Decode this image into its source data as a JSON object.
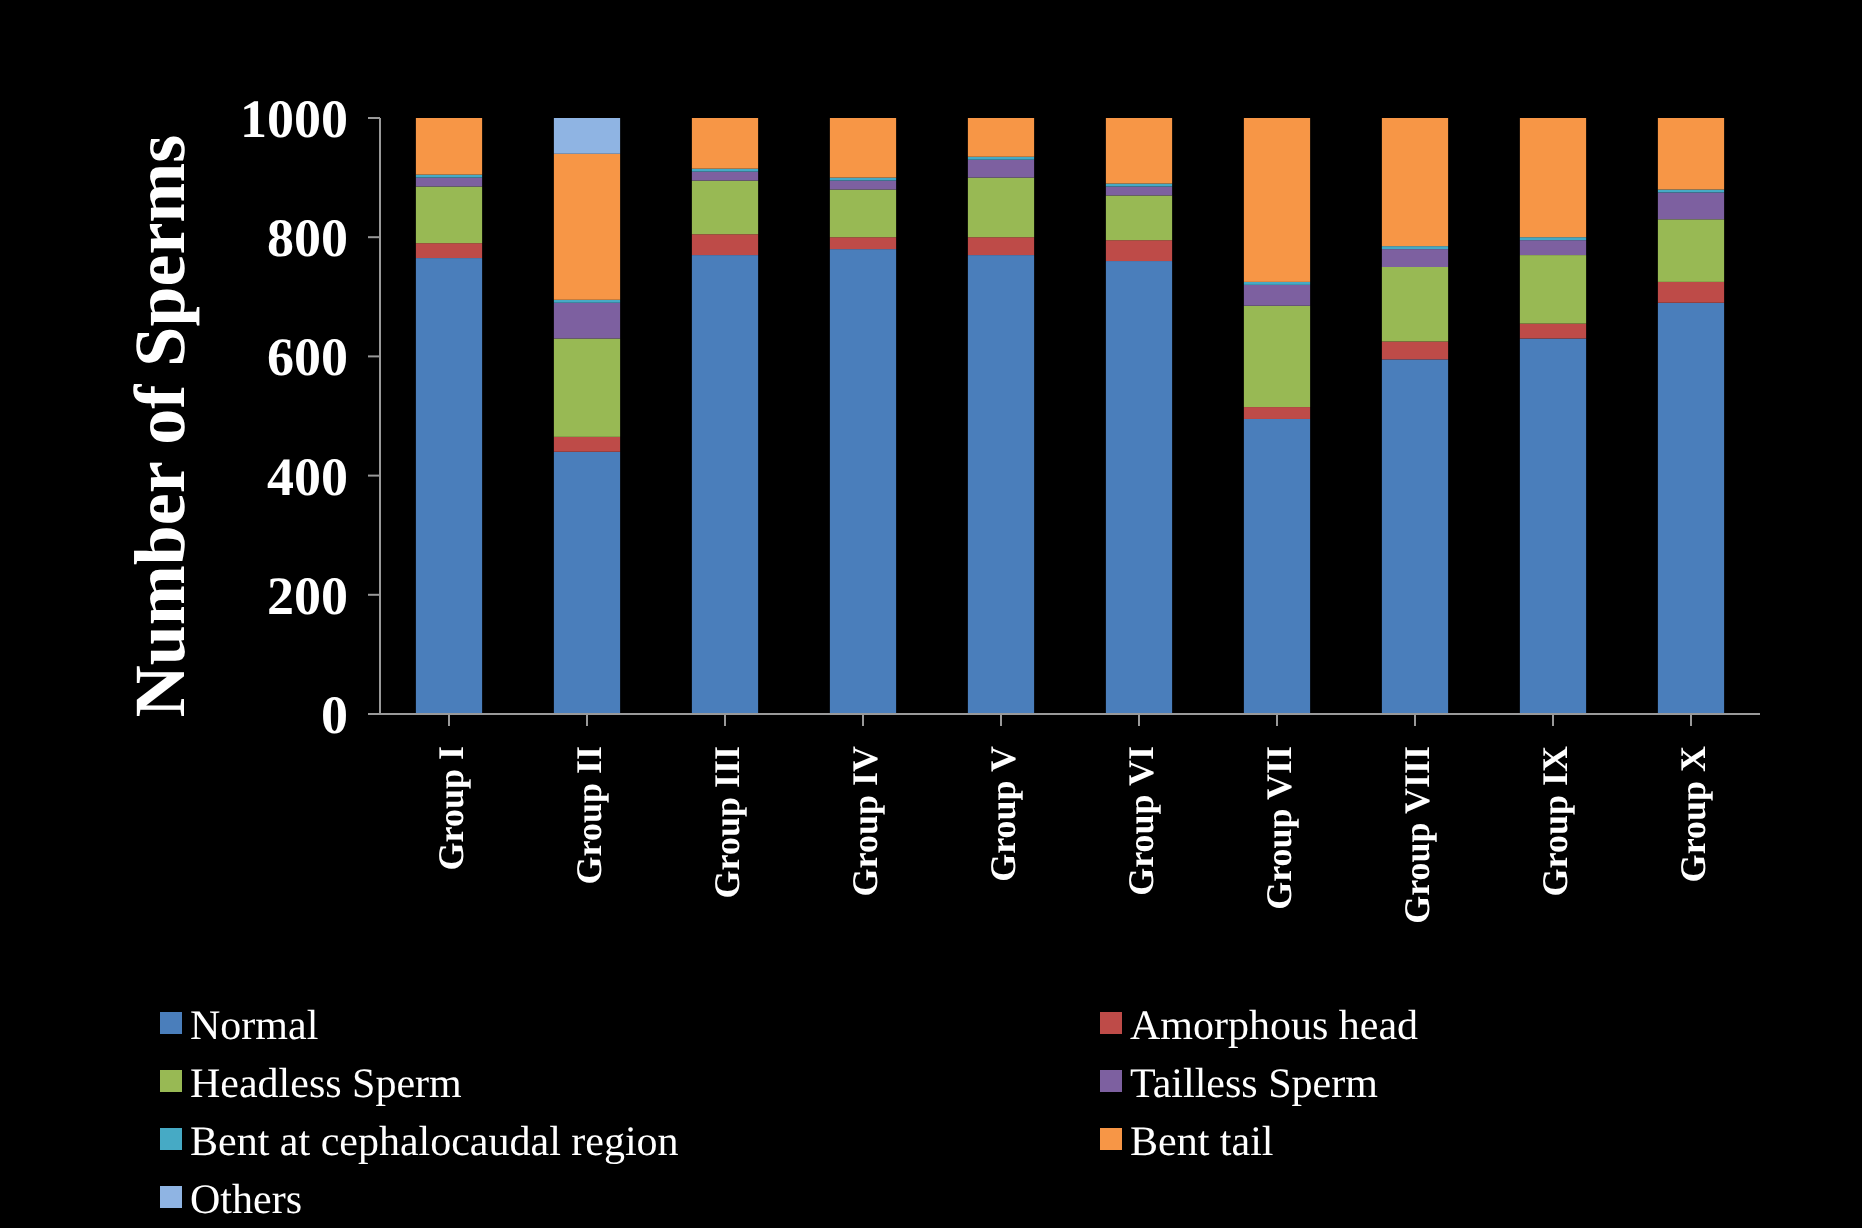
{
  "chart_data": {
    "type": "bar",
    "stacked": true,
    "ylabel": "Number of Sperms",
    "categories": [
      "Group I",
      "Group II",
      "Group III",
      "Group IV",
      "Group V",
      "Group VI",
      "Group VII",
      "Group VIII",
      "Group IX",
      "Group X"
    ],
    "series": [
      {
        "name": "Normal",
        "color": "#4a7ebb",
        "values": [
          765,
          440,
          770,
          780,
          770,
          760,
          495,
          595,
          630,
          690
        ]
      },
      {
        "name": "Amorphous head",
        "color": "#be4b48",
        "values": [
          25,
          25,
          35,
          20,
          30,
          35,
          20,
          30,
          25,
          35
        ]
      },
      {
        "name": "Headless Sperm",
        "color": "#98b954",
        "values": [
          95,
          165,
          90,
          80,
          100,
          75,
          170,
          125,
          115,
          105
        ]
      },
      {
        "name": "Tailless Sperm",
        "color": "#7d60a0",
        "values": [
          15,
          60,
          15,
          15,
          30,
          15,
          35,
          30,
          25,
          45
        ]
      },
      {
        "name": "Bent at cephalocaudal region",
        "color": "#46aac5",
        "values": [
          5,
          5,
          5,
          5,
          5,
          5,
          5,
          5,
          5,
          5
        ]
      },
      {
        "name": "Bent tail",
        "color": "#f79646",
        "values": [
          95,
          245,
          85,
          100,
          65,
          110,
          275,
          215,
          200,
          120
        ]
      },
      {
        "name": "Others",
        "color": "#8fb4e3",
        "values": [
          0,
          60,
          0,
          0,
          0,
          0,
          0,
          0,
          0,
          0
        ]
      }
    ],
    "ylim": [
      0,
      1000
    ],
    "yticks": [
      0,
      200,
      400,
      600,
      800,
      1000
    ],
    "legend": "bottom"
  }
}
